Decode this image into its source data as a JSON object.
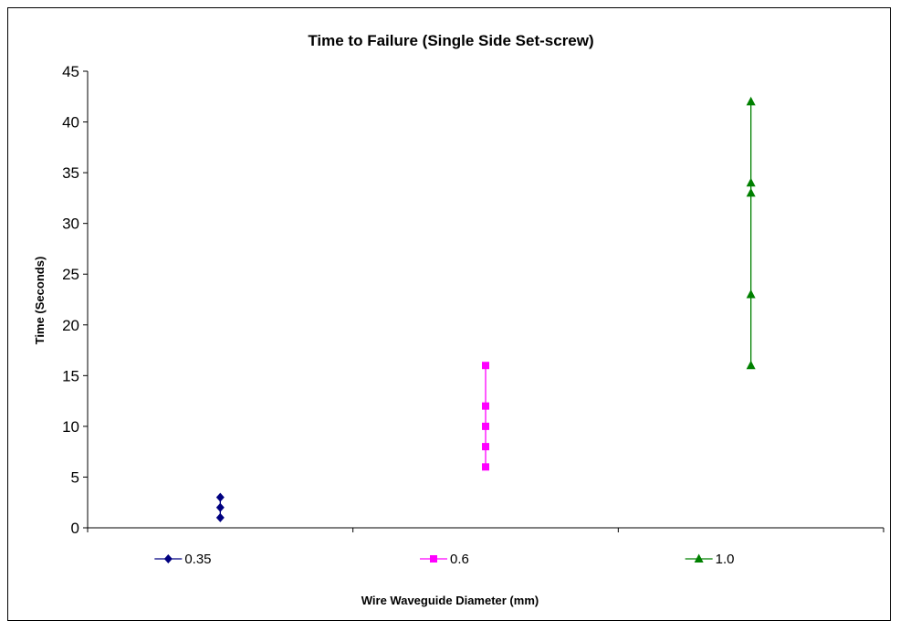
{
  "chart_data": {
    "type": "line",
    "title": "Time to Failure (Single Side Set-screw)",
    "xlabel": "Wire Waveguide Diameter (mm)",
    "ylabel": "Time (Seconds)",
    "ylim": [
      0,
      45
    ],
    "yticks": [
      0,
      5,
      10,
      15,
      20,
      25,
      30,
      35,
      40,
      45
    ],
    "grid": false,
    "legend_position": "bottom",
    "series": [
      {
        "name": "0.35",
        "color": "#000080",
        "marker": "diamond",
        "category_index": 0,
        "values": [
          1,
          2,
          3
        ]
      },
      {
        "name": "0.6",
        "color": "#FF00FF",
        "marker": "square",
        "category_index": 1,
        "values": [
          6,
          8,
          10,
          12,
          16
        ]
      },
      {
        "name": "1.0",
        "color": "#008000",
        "marker": "triangle",
        "category_index": 2,
        "values": [
          16,
          23,
          33,
          34,
          42
        ]
      }
    ]
  }
}
